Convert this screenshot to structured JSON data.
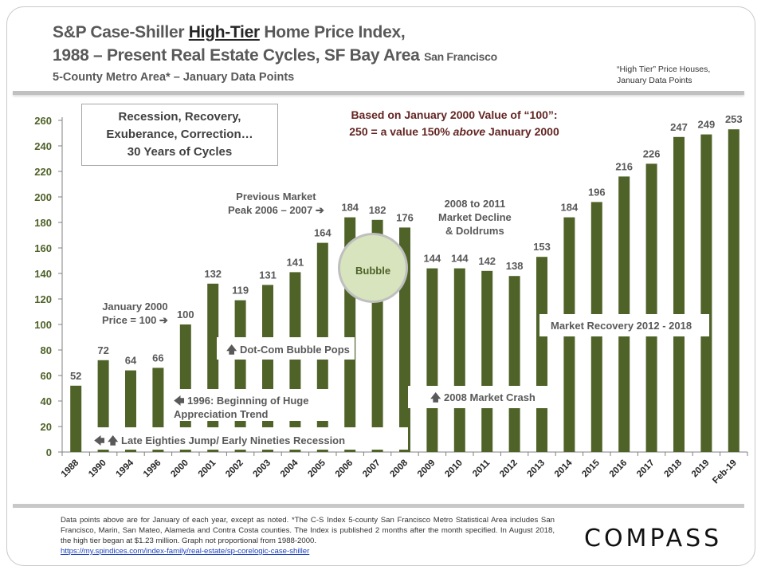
{
  "title": {
    "line1_pre": "S&P Case-Shiller ",
    "line1_underlined": "High-Tier",
    "line1_post": " Home Price Index,",
    "line2": "1988 – Present Real Estate Cycles, SF Bay Area ",
    "line2_small": "San Francisco",
    "line3": "5-County Metro Area* – January Data Points"
  },
  "side_note": {
    "line1": "“High Tier” Price Houses,",
    "line2": "January Data Points"
  },
  "callout_box": {
    "line1": "Recession, Recovery,",
    "line2": "Exuberance, Correction…",
    "line3": "30 Years of Cycles"
  },
  "baseline_note": {
    "line1": "Based on January 2000 Value of “100”:",
    "line2_pre": "250 = a value 150% ",
    "line2_em": "above",
    "line2_post": " January 2000"
  },
  "annotations": {
    "jan2000_l1": "January 2000",
    "jan2000_l2": "Price = 100 ➔",
    "peak_l1": "Previous Market",
    "peak_l2": "Peak 2006 – 2007 ➔",
    "decline_l1": "2008 to 2011",
    "decline_l2": "Market Decline",
    "decline_l3": "& Doldrums",
    "bubble": "Bubble",
    "dotcom": "🡅 Dot-Com Bubble Pops",
    "trend_l1": "🡄 1996:  Beginning of Huge",
    "trend_l2": "Appreciation Trend",
    "eighties": "🡄 🡅 Late Eighties Jump/ Early Nineties Recession",
    "crash": "🡅 2008  Market Crash",
    "recovery": "Market Recovery 2012  - 2018"
  },
  "footnote": {
    "text": "Data points above are for January of each year, except as noted. *The C-S Index 5-county San Francisco Metro Statistical Area includes San Francisco, Marin, San Mateo, Alameda and Contra Costa counties. The Index is published 2 months after the month specified.  In August 2018, the high tier began at $1.23 million. Graph not proportional from 1988-2000.",
    "link": "https://my.spindices.com/index-family/real-estate/sp-corelogic-case-shiller"
  },
  "logo": "COMPASS",
  "colors": {
    "bar": "#4f6228",
    "axis_label": "#4f6228",
    "value_label": "#595959",
    "note_red": "#632523",
    "bubble_fill": "#d7e4bd",
    "bubble_stroke": "#bfbfbf"
  },
  "chart_data": {
    "type": "bar",
    "title": "S&P Case-Shiller High-Tier Home Price Index, 1988 – Present Real Estate Cycles, SF Bay Area",
    "xlabel": "",
    "ylabel": "",
    "ylim": [
      0,
      260
    ],
    "yticks": [
      0,
      20,
      40,
      60,
      80,
      100,
      120,
      140,
      160,
      180,
      200,
      220,
      240,
      260
    ],
    "grid": false,
    "categories": [
      "1988",
      "1990",
      "1994",
      "1996",
      "2000",
      "2001",
      "2002",
      "2003",
      "2004",
      "2005",
      "2006",
      "2007",
      "2008",
      "2009",
      "2010",
      "2011",
      "2012",
      "2013",
      "2014",
      "2015",
      "2016",
      "2017",
      "2018",
      "2019",
      "Feb-19"
    ],
    "values": [
      52,
      72,
      64,
      66,
      100,
      132,
      119,
      131,
      141,
      164,
      184,
      182,
      176,
      144,
      144,
      142,
      138,
      153,
      184,
      196,
      216,
      226,
      247,
      249,
      253
    ]
  }
}
